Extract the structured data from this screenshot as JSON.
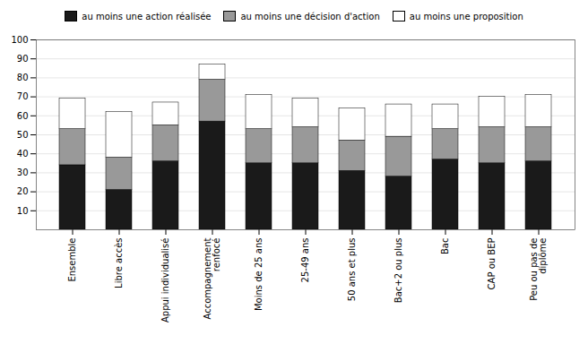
{
  "chart_data": {
    "type": "bar",
    "stacked": true,
    "categories": [
      "Ensemble",
      "Libre accès",
      "Appui individualisé",
      "Accompagnement\nrenfocé",
      "Moins de 25 ans",
      "25-49 ans",
      "50 ans et plus",
      "Bac+2 ou plus",
      "Bac",
      "CAP ou BEP",
      "Peu ou pas de\ndiplôme"
    ],
    "series": [
      {
        "name": "au moins une action réalisée",
        "color": "#1a1a1a",
        "values": [
          34,
          21,
          36,
          57,
          35,
          35,
          31,
          28,
          37,
          35,
          36
        ]
      },
      {
        "name": "au moins une décision d'action",
        "color": "#999999",
        "values": [
          19,
          17,
          19,
          22,
          18,
          19,
          16,
          21,
          16,
          19,
          18
        ]
      },
      {
        "name": "au moins une proposition",
        "color": "#ffffff",
        "values": [
          16,
          24,
          12,
          8,
          18,
          15,
          17,
          17,
          13,
          16,
          17
        ]
      }
    ],
    "ylim": [
      0,
      100
    ],
    "yticks": [
      10,
      20,
      30,
      40,
      50,
      60,
      70,
      80,
      90,
      100
    ],
    "grid": true,
    "legend": "top"
  }
}
